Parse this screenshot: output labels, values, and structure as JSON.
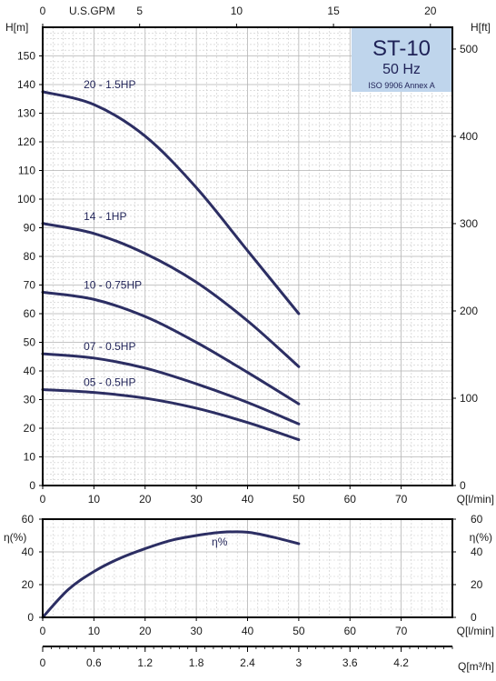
{
  "chart_data": {
    "type": "line",
    "badge": {
      "title": "ST-10",
      "frequency": "50 Hz",
      "standard": "ISO 9906 Annex A"
    },
    "colors": {
      "curve": "#2c2e63",
      "badge_bg": "#bfd5ec",
      "frame": "#000000"
    },
    "head_chart": {
      "x_bottom_label": "Q[l/min]",
      "x_bottom_ticks": [
        "0",
        "10",
        "20",
        "30",
        "40",
        "50",
        "60",
        "70"
      ],
      "x_top_label": "U.S.GPM",
      "x_top_ticks": [
        "0",
        "5",
        "10",
        "15",
        "20"
      ],
      "y_left_label": "H[m]",
      "y_left_ticks": [
        "0",
        "10",
        "20",
        "30",
        "40",
        "50",
        "60",
        "70",
        "80",
        "90",
        "100",
        "110",
        "120",
        "130",
        "140",
        "150"
      ],
      "y_right_label": "H[ft]",
      "y_right_ticks": [
        "0",
        "100",
        "200",
        "300",
        "400",
        "500"
      ],
      "xlim": [
        0,
        80
      ],
      "ylim": [
        0,
        160
      ],
      "grid": true,
      "series": [
        {
          "name": "20 - 1.5HP",
          "x": [
            0,
            10,
            20,
            30,
            40,
            50
          ],
          "y": [
            137.5,
            133,
            122,
            104,
            82,
            60
          ]
        },
        {
          "name": "14 - 1HP",
          "x": [
            0,
            10,
            20,
            30,
            40,
            50
          ],
          "y": [
            91.5,
            88,
            81,
            71,
            57.5,
            41.5
          ]
        },
        {
          "name": "10 - 0.75HP",
          "x": [
            0,
            10,
            20,
            30,
            40,
            50
          ],
          "y": [
            67.5,
            65,
            59,
            50,
            39.5,
            28.5
          ]
        },
        {
          "name": "07 - 0.5HP",
          "x": [
            0,
            10,
            20,
            30,
            40,
            50
          ],
          "y": [
            46,
            44.5,
            41,
            35.5,
            29,
            21.5
          ]
        },
        {
          "name": "05 - 0.5HP",
          "x": [
            0,
            10,
            20,
            30,
            40,
            50
          ],
          "y": [
            33.5,
            32.5,
            30.5,
            27,
            22,
            16
          ]
        }
      ]
    },
    "efficiency_chart": {
      "x_label": "Q[l/min]",
      "x_ticks": [
        "0",
        "10",
        "20",
        "30",
        "40",
        "50",
        "60",
        "70"
      ],
      "y_left_label": "η(%)",
      "y_right_label": "η(%)",
      "y_ticks": [
        "0",
        "20",
        "40",
        "60"
      ],
      "xlim": [
        0,
        80
      ],
      "ylim": [
        0,
        60
      ],
      "grid": true,
      "series": [
        {
          "name": "η%",
          "x": [
            0,
            5,
            10,
            15,
            20,
            25,
            30,
            35,
            40,
            45,
            50
          ],
          "y": [
            0,
            17,
            28,
            36,
            42,
            47,
            50,
            52,
            52,
            49,
            45
          ]
        }
      ]
    },
    "flow_axis": {
      "label": "Q[m³/h]",
      "ticks": [
        "0",
        "0.6",
        "1.2",
        "1.8",
        "2.4",
        "3",
        "3.6",
        "4.2"
      ],
      "xlim": [
        0,
        4.8
      ]
    }
  }
}
